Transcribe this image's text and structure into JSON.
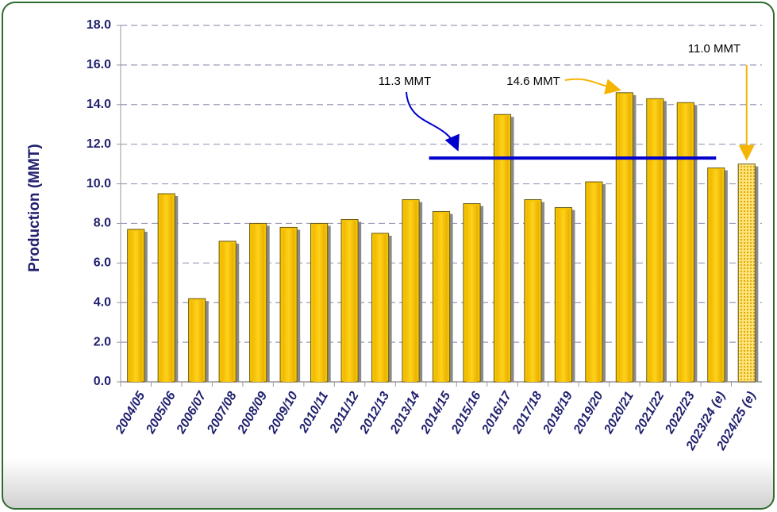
{
  "chart_data": {
    "type": "bar",
    "y_label": "Production (MMT)",
    "categories": [
      "2004/05",
      "2005/06",
      "2006/07",
      "2007/08",
      "2008/09",
      "2009/10",
      "2010/11",
      "2011/12",
      "2012/13",
      "2013/14",
      "2014/15",
      "2015/16",
      "2016/17",
      "2017/18",
      "2018/19",
      "2019/20",
      "2020/21",
      "2021/22",
      "2022/23",
      "2023/24 (e)",
      "2024/25 (e)"
    ],
    "values": [
      7.7,
      9.5,
      4.2,
      7.1,
      8.0,
      7.8,
      8.0,
      8.2,
      7.5,
      9.2,
      8.6,
      9.0,
      13.5,
      9.2,
      8.8,
      10.1,
      14.6,
      14.3,
      14.1,
      10.8,
      11.0
    ],
    "color": "#f5c400",
    "pattern_index": 20,
    "ylim": [
      0,
      18
    ],
    "yticks": [
      {
        "value": 0,
        "label": "0.0"
      },
      {
        "value": 2,
        "label": "2.0"
      },
      {
        "value": 4,
        "label": "4.0"
      },
      {
        "value": 6,
        "label": "6.0"
      },
      {
        "value": 8,
        "label": "8.0"
      },
      {
        "value": 10,
        "label": "10.0"
      },
      {
        "value": 12,
        "label": "12.0"
      },
      {
        "value": 14,
        "label": "14.0"
      },
      {
        "value": 16,
        "label": "16.0"
      },
      {
        "value": 18,
        "label": "18.0"
      }
    ],
    "grid": true,
    "annotations": [
      {
        "label": "11.3 MMT",
        "value": 11.3,
        "color": "#0000cc"
      },
      {
        "label": "14.6 MMT",
        "value": 14.6,
        "color": "#f5b400"
      },
      {
        "label": "11.0 MMT",
        "value": 11.0,
        "color": "#f5b400"
      }
    ]
  }
}
